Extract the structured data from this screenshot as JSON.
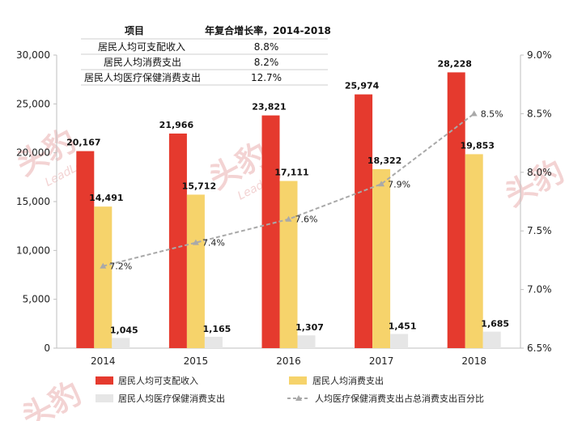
{
  "table": {
    "headers": [
      "项目",
      "年复合增长率，2014-2018"
    ],
    "rows": [
      [
        "居民人均可支配收入",
        "8.8%"
      ],
      [
        "居民人均消费支出",
        "8.2%"
      ],
      [
        "居民人均医疗保健消费支出",
        "12.7%"
      ]
    ]
  },
  "watermark": {
    "text": "头豹",
    "sub": "LeadLeo"
  },
  "colors": {
    "income": "#e53a2e",
    "consumption": "#f6d36b",
    "healthcare": "#e6e6e6",
    "ratio_line": "#a9a9a9"
  },
  "chart_data": {
    "type": "bar",
    "categories": [
      "2014",
      "2015",
      "2016",
      "2017",
      "2018"
    ],
    "series": [
      {
        "name": "居民人均可支配收入",
        "values": [
          20167,
          21966,
          23821,
          25974,
          28228
        ],
        "labels": [
          "20,167",
          "21,966",
          "23,821",
          "25,974",
          "28,228"
        ]
      },
      {
        "name": "居民人均消费支出",
        "values": [
          14491,
          15712,
          17111,
          18322,
          19853
        ],
        "labels": [
          "14,491",
          "15,712",
          "17,111",
          "18,322",
          "19,853"
        ]
      },
      {
        "name": "居民人均医疗保健消费支出",
        "values": [
          1045,
          1165,
          1307,
          1451,
          1685
        ],
        "labels": [
          "1,045",
          "1,165",
          "1,307",
          "1,451",
          "1,685"
        ]
      }
    ],
    "line_series": {
      "name": "人均医疗保健消费支出占总消费支出百分比",
      "type": "line",
      "axis": "right",
      "values": [
        7.2,
        7.4,
        7.6,
        7.9,
        8.5
      ],
      "labels": [
        "7.2%",
        "7.4%",
        "7.6%",
        "7.9%",
        "8.5%"
      ]
    },
    "ylim": [
      0,
      30000
    ],
    "yticks": [
      "0",
      "5,000",
      "10,000",
      "15,000",
      "20,000",
      "25,000",
      "30,000"
    ],
    "y2lim": [
      6.5,
      9.0
    ],
    "y2ticks": [
      "6.5%",
      "7.0%",
      "7.5%",
      "8.0%",
      "8.5%",
      "9.0%"
    ],
    "legend_position": "bottom",
    "grid": false
  }
}
